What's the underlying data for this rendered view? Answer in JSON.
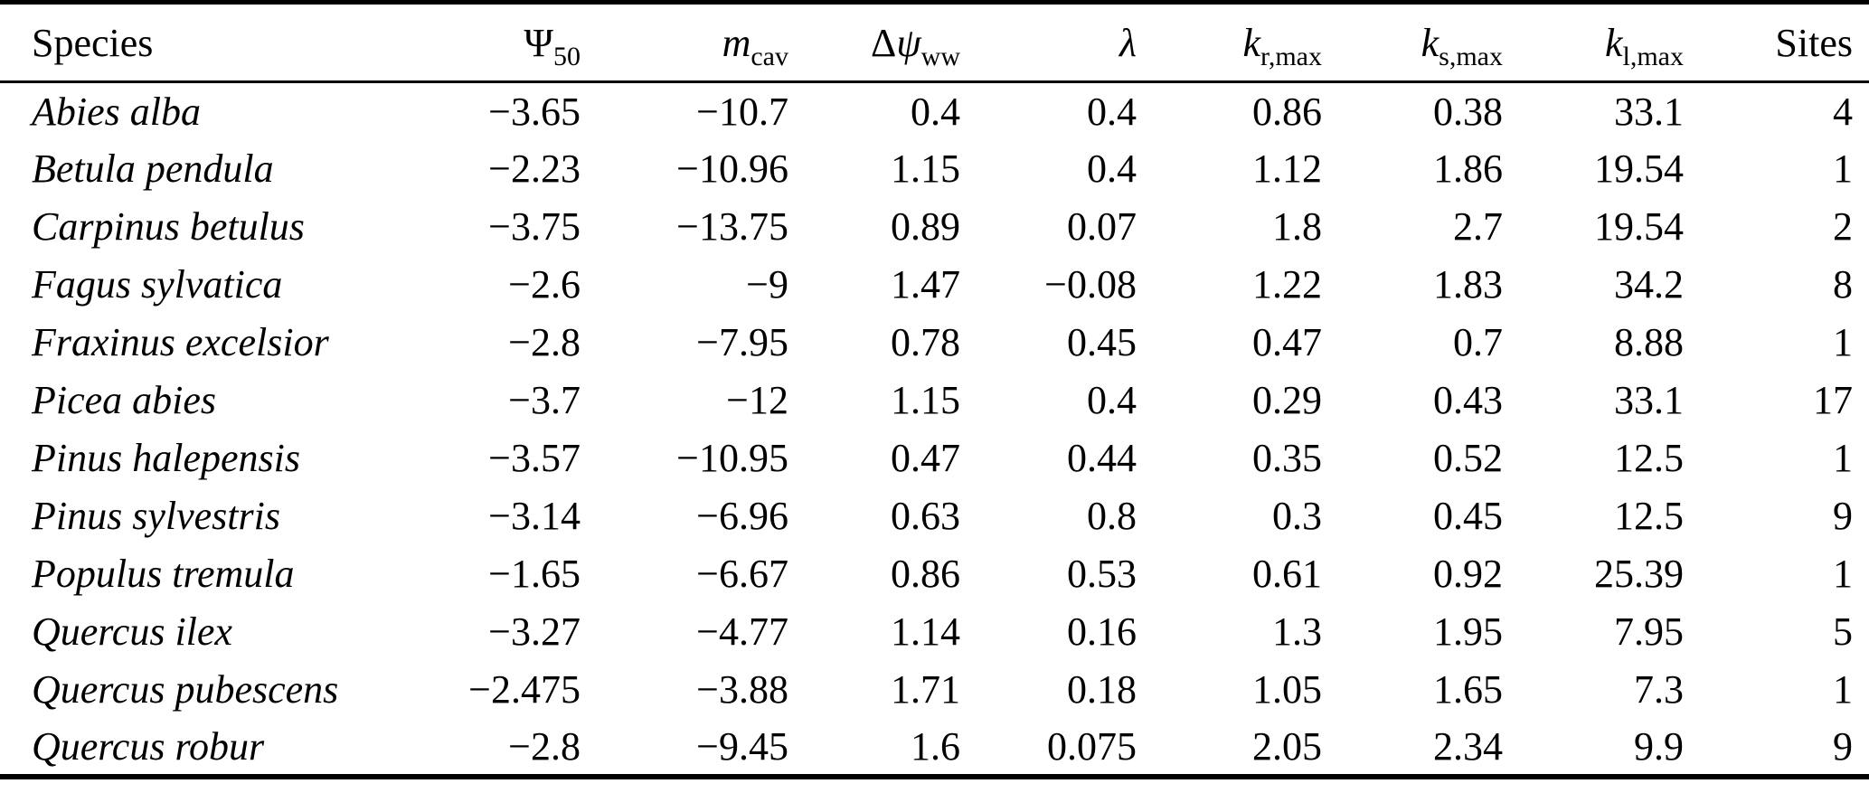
{
  "table": {
    "title_semantics": "Species hydraulic trait parameters",
    "header": {
      "species": "Species",
      "psi50": {
        "base": "Ψ",
        "sub": "50"
      },
      "mcav": {
        "base": "m",
        "sub": "cav"
      },
      "dpsiww": {
        "prefix": "Δ",
        "base": "ψ",
        "sub": "ww"
      },
      "lambda": {
        "base": "λ"
      },
      "krmax": {
        "base": "k",
        "sub": "r,max"
      },
      "ksmax": {
        "base": "k",
        "sub": "s,max"
      },
      "klmax": {
        "base": "k",
        "sub": "l,max"
      },
      "sites": "Sites"
    },
    "rows": [
      [
        "Abies alba",
        "−3.65",
        "−10.7",
        "0.4",
        "0.4",
        "0.86",
        "0.38",
        "33.1",
        "4"
      ],
      [
        "Betula pendula",
        "−2.23",
        "−10.96",
        "1.15",
        "0.4",
        "1.12",
        "1.86",
        "19.54",
        "1"
      ],
      [
        "Carpinus betulus",
        "−3.75",
        "−13.75",
        "0.89",
        "0.07",
        "1.8",
        "2.7",
        "19.54",
        "2"
      ],
      [
        "Fagus sylvatica",
        "−2.6",
        "−9",
        "1.47",
        "−0.08",
        "1.22",
        "1.83",
        "34.2",
        "8"
      ],
      [
        "Fraxinus excelsior",
        "−2.8",
        "−7.95",
        "0.78",
        "0.45",
        "0.47",
        "0.7",
        "8.88",
        "1"
      ],
      [
        "Picea abies",
        "−3.7",
        "−12",
        "1.15",
        "0.4",
        "0.29",
        "0.43",
        "33.1",
        "17"
      ],
      [
        "Pinus halepensis",
        "−3.57",
        "−10.95",
        "0.47",
        "0.44",
        "0.35",
        "0.52",
        "12.5",
        "1"
      ],
      [
        "Pinus sylvestris",
        "−3.14",
        "−6.96",
        "0.63",
        "0.8",
        "0.3",
        "0.45",
        "12.5",
        "9"
      ],
      [
        "Populus tremula",
        "−1.65",
        "−6.67",
        "0.86",
        "0.53",
        "0.61",
        "0.92",
        "25.39",
        "1"
      ],
      [
        "Quercus ilex",
        "−3.27",
        "−4.77",
        "1.14",
        "0.16",
        "1.3",
        "1.95",
        "7.95",
        "5"
      ],
      [
        "Quercus pubescens",
        "−2.475",
        "−3.88",
        "1.71",
        "0.18",
        "1.05",
        "1.65",
        "7.3",
        "1"
      ],
      [
        "Quercus robur",
        "−2.8",
        "−9.45",
        "1.6",
        "0.075",
        "2.05",
        "2.34",
        "9.9",
        "9"
      ]
    ],
    "chart_data": {
      "type": "table",
      "columns": [
        "Species",
        "Psi_50",
        "m_cav",
        "Delta_psi_ww",
        "lambda",
        "k_r,max",
        "k_s,max",
        "k_l,max",
        "Sites"
      ]
    }
  }
}
